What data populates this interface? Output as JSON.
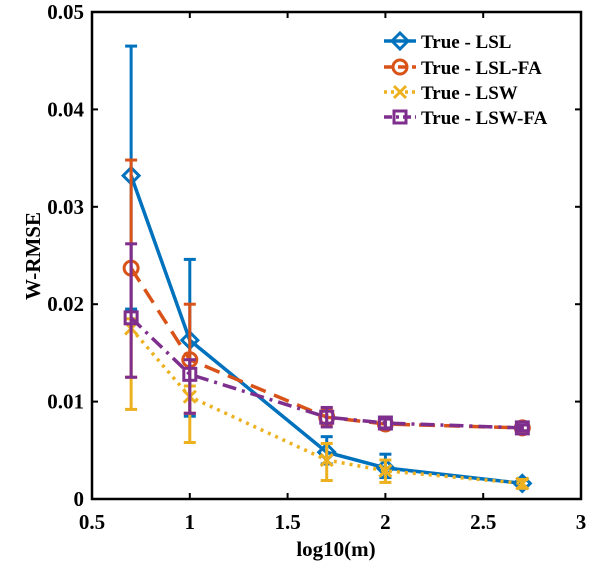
{
  "chart_data": {
    "type": "line",
    "xlabel": "log10(m)",
    "ylabel": "W-RMSE",
    "xlim": [
      0.5,
      3
    ],
    "ylim": [
      0,
      0.05
    ],
    "xticks": [
      "0.5",
      "1",
      "1.5",
      "2",
      "2.5",
      "3"
    ],
    "yticks": [
      "0",
      "0.01",
      "0.02",
      "0.03",
      "0.04",
      "0.05"
    ],
    "grid": false,
    "legend_position": "top-right",
    "x": [
      0.7,
      1.0,
      1.7,
      2.0,
      2.7
    ],
    "series": [
      {
        "name": "True - LSL",
        "color": "#0072BD",
        "line_style": "solid",
        "marker": "diamond",
        "values": [
          0.0332,
          0.0163,
          0.0048,
          0.0032,
          0.0016
        ],
        "err_low": [
          0.0195,
          0.0085,
          0.0036,
          0.0022,
          0.0013
        ],
        "err_high": [
          0.0465,
          0.0246,
          0.0064,
          0.0046,
          0.0021
        ]
      },
      {
        "name": "True - LSL-FA",
        "color": "#D95319",
        "line_style": "dashed",
        "marker": "circle",
        "values": [
          0.0237,
          0.0143,
          0.0084,
          0.0077,
          0.0073
        ],
        "err_low": [
          0.0125,
          0.0088,
          0.0076,
          0.0072,
          0.007
        ],
        "err_high": [
          0.0348,
          0.02,
          0.0093,
          0.0083,
          0.0076
        ]
      },
      {
        "name": "True - LSW",
        "color": "#EDB120",
        "line_style": "dotted",
        "marker": "x",
        "values": [
          0.0175,
          0.0105,
          0.004,
          0.0029,
          0.0016
        ],
        "err_low": [
          0.0092,
          0.0058,
          0.0019,
          0.0017,
          0.0011
        ],
        "err_high": [
          0.0185,
          0.0116,
          0.0057,
          0.004,
          0.002
        ]
      },
      {
        "name": "True - LSW-FA",
        "color": "#7E2F8E",
        "line_style": "dashdot",
        "marker": "square",
        "values": [
          0.0186,
          0.0128,
          0.0084,
          0.0078,
          0.0073
        ],
        "err_low": [
          0.0125,
          0.0088,
          0.0074,
          0.0073,
          0.007
        ],
        "err_high": [
          0.0262,
          0.0143,
          0.0094,
          0.0082,
          0.0076
        ]
      }
    ]
  }
}
